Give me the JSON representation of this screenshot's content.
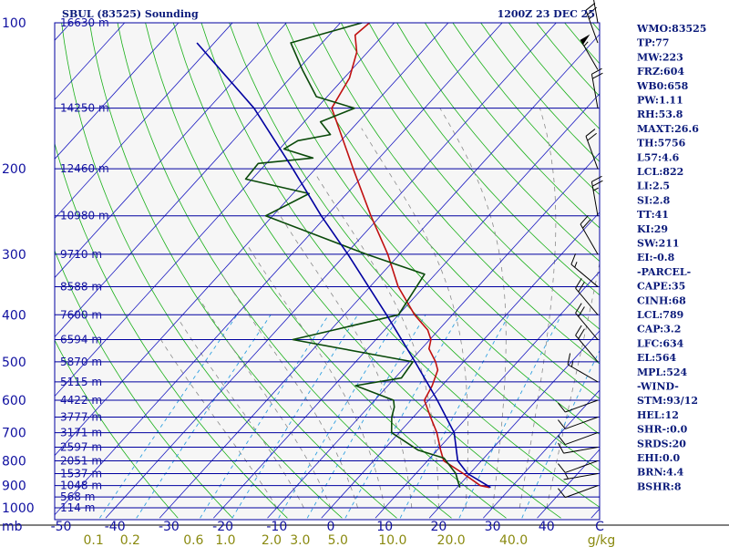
{
  "chart_data": {
    "type": "line",
    "title": "SBUL (83525) Sounding",
    "time": "1200Z 23 DEC 25",
    "x_unit": "C",
    "w_unit": "g/kg",
    "p_unit": "mb",
    "pressure_ticks": [
      100,
      200,
      300,
      400,
      500,
      600,
      700,
      800,
      900,
      1000
    ],
    "temperature_ticks": [
      -50,
      -40,
      -30,
      -20,
      -10,
      0,
      10,
      20,
      30,
      40
    ],
    "mixing_ratio_ticks": [
      "0.1",
      "0.2",
      "0.6",
      "1.0",
      "2.0",
      "3.0",
      "5.0",
      "10.0",
      "20.0",
      "40.0"
    ],
    "height_labels": [
      {
        "p": 100,
        "label": "16630 m"
      },
      {
        "p": 150,
        "label": "14250 m"
      },
      {
        "p": 200,
        "label": "12460 m"
      },
      {
        "p": 250,
        "label": "10980 m"
      },
      {
        "p": 300,
        "label": "9710 m"
      },
      {
        "p": 350,
        "label": "8588 m"
      },
      {
        "p": 400,
        "label": "7600 m"
      },
      {
        "p": 450,
        "label": "6594 m"
      },
      {
        "p": 500,
        "label": "5870 m"
      },
      {
        "p": 550,
        "label": "5115 m"
      },
      {
        "p": 600,
        "label": "4422 m"
      },
      {
        "p": 650,
        "label": "3777 m"
      },
      {
        "p": 700,
        "label": "3171 m"
      },
      {
        "p": 750,
        "label": "2597 m"
      },
      {
        "p": 800,
        "label": "2051 m"
      },
      {
        "p": 850,
        "label": "1537 m"
      },
      {
        "p": 900,
        "label": "1048 m"
      },
      {
        "p": 950,
        "label": "568 m"
      },
      {
        "p": 1000,
        "label": "114 m"
      }
    ],
    "series": [
      {
        "name": "Temperature",
        "color": "#c01010",
        "points": [
          {
            "p": 908,
            "t": 26.0
          },
          {
            "p": 900,
            "t": 24.0
          },
          {
            "p": 850,
            "t": 18.8
          },
          {
            "p": 800,
            "t": 13.0
          },
          {
            "p": 760,
            "t": 10.6
          },
          {
            "p": 700,
            "t": 7.0
          },
          {
            "p": 650,
            "t": 3.2
          },
          {
            "p": 600,
            "t": -0.8
          },
          {
            "p": 560,
            "t": -1.8
          },
          {
            "p": 520,
            "t": -3.4
          },
          {
            "p": 500,
            "t": -5.2
          },
          {
            "p": 470,
            "t": -8.6
          },
          {
            "p": 450,
            "t": -9.8
          },
          {
            "p": 430,
            "t": -12.0
          },
          {
            "p": 400,
            "t": -17.0
          },
          {
            "p": 350,
            "t": -24.8
          },
          {
            "p": 300,
            "t": -32.2
          },
          {
            "p": 250,
            "t": -41.8
          },
          {
            "p": 200,
            "t": -53.0
          },
          {
            "p": 160,
            "t": -64.0
          },
          {
            "p": 150,
            "t": -67.2
          },
          {
            "p": 130,
            "t": -69.0
          },
          {
            "p": 115,
            "t": -72.0
          },
          {
            "p": 106,
            "t": -75.2
          },
          {
            "p": 100,
            "t": -74.6
          }
        ]
      },
      {
        "name": "Dewpoint",
        "color": "#0a4a0a",
        "points": [
          {
            "p": 908,
            "t": 20.5
          },
          {
            "p": 880,
            "t": 19.0
          },
          {
            "p": 850,
            "t": 17.4
          },
          {
            "p": 790,
            "t": 12.6
          },
          {
            "p": 760,
            "t": 6.4
          },
          {
            "p": 700,
            "t": -1.4
          },
          {
            "p": 650,
            "t": -4.0
          },
          {
            "p": 620,
            "t": -5.2
          },
          {
            "p": 600,
            "t": -6.5
          },
          {
            "p": 560,
            "t": -16.0
          },
          {
            "p": 540,
            "t": -8.8
          },
          {
            "p": 500,
            "t": -9.4
          },
          {
            "p": 450,
            "t": -35.4
          },
          {
            "p": 400,
            "t": -20.0
          },
          {
            "p": 330,
            "t": -22.0
          },
          {
            "p": 300,
            "t": -36.2
          },
          {
            "p": 250,
            "t": -61.3
          },
          {
            "p": 225,
            "t": -57.0
          },
          {
            "p": 210,
            "t": -71.2
          },
          {
            "p": 195,
            "t": -71.5
          },
          {
            "p": 190,
            "t": -62.3
          },
          {
            "p": 182,
            "t": -69.2
          },
          {
            "p": 175,
            "t": -68.0
          },
          {
            "p": 170,
            "t": -63.0
          },
          {
            "p": 160,
            "t": -67.0
          },
          {
            "p": 150,
            "t": -63.0
          },
          {
            "p": 142,
            "t": -72.0
          },
          {
            "p": 125,
            "t": -79.1
          },
          {
            "p": 110,
            "t": -85.8
          },
          {
            "p": 100,
            "t": -76.0
          }
        ]
      },
      {
        "name": "Parcel",
        "color": "#0000a0",
        "points": [
          {
            "p": 908,
            "t": 26.2
          },
          {
            "p": 850,
            "t": 19.6
          },
          {
            "p": 800,
            "t": 15.6
          },
          {
            "p": 700,
            "t": 10.2
          },
          {
            "p": 600,
            "t": 1.6
          },
          {
            "p": 500,
            "t": -9.0
          },
          {
            "p": 400,
            "t": -22.2
          },
          {
            "p": 300,
            "t": -39.6
          },
          {
            "p": 250,
            "t": -51.0
          },
          {
            "p": 200,
            "t": -64.2
          },
          {
            "p": 150,
            "t": -81.6
          },
          {
            "p": 110,
            "t": -103.2
          }
        ]
      }
    ],
    "wind_barbs": [
      {
        "p": 900,
        "dir": 250,
        "kt": 10
      },
      {
        "p": 850,
        "dir": 260,
        "kt": 5
      },
      {
        "p": 800,
        "dir": 250,
        "kt": 10
      },
      {
        "p": 750,
        "dir": 260,
        "kt": 10
      },
      {
        "p": 700,
        "dir": 250,
        "kt": 10
      },
      {
        "p": 650,
        "dir": 250,
        "kt": 10
      },
      {
        "p": 600,
        "dir": 250,
        "kt": 10
      },
      {
        "p": 550,
        "dir": 300,
        "kt": 15
      },
      {
        "p": 500,
        "dir": 320,
        "kt": 20
      },
      {
        "p": 450,
        "dir": 320,
        "kt": 20
      },
      {
        "p": 400,
        "dir": 320,
        "kt": 20
      },
      {
        "p": 350,
        "dir": 310,
        "kt": 15
      },
      {
        "p": 300,
        "dir": 330,
        "kt": 20
      },
      {
        "p": 250,
        "dir": 350,
        "kt": 25
      },
      {
        "p": 200,
        "dir": 340,
        "kt": 20
      },
      {
        "p": 150,
        "dir": 350,
        "kt": 20
      },
      {
        "p": 125,
        "dir": 330,
        "kt": 55
      },
      {
        "p": 110,
        "dir": 340,
        "kt": 25
      },
      {
        "p": 100,
        "dir": 350,
        "kt": 15
      }
    ],
    "indices": [
      "WMO:83525",
      "TP:77",
      "MW:223",
      "FRZ:604",
      "WB0:658",
      "PW:1.11",
      "RH:53.8",
      "MAXT:26.6",
      "TH:5756",
      "L57:4.6",
      "LCL:822",
      "LI:2.5",
      "SI:2.8",
      "TT:41",
      "KI:29",
      "SW:211",
      "EI:-0.8",
      "-PARCEL-",
      "CAPE:35",
      "CINH:68",
      "LCL:789",
      "CAP:3.2",
      "LFC:634",
      "EL:564",
      "MPL:524",
      "-WIND-",
      "STM:93/12",
      "HEL:12",
      "SHR-:0.0",
      "SRDS:20",
      "EHI:0.0",
      "BRN:4.4",
      "BSHR:8"
    ],
    "colors": {
      "frame": "#0000a0",
      "isotherm": "#1a1ac0",
      "dry_adiabat": "#1ab01a",
      "moist_adiabat": "#8a8a8a",
      "mixing_ratio": "#30a0e0",
      "text": "#0a1a7a",
      "w_text": "#8a8a10"
    }
  }
}
